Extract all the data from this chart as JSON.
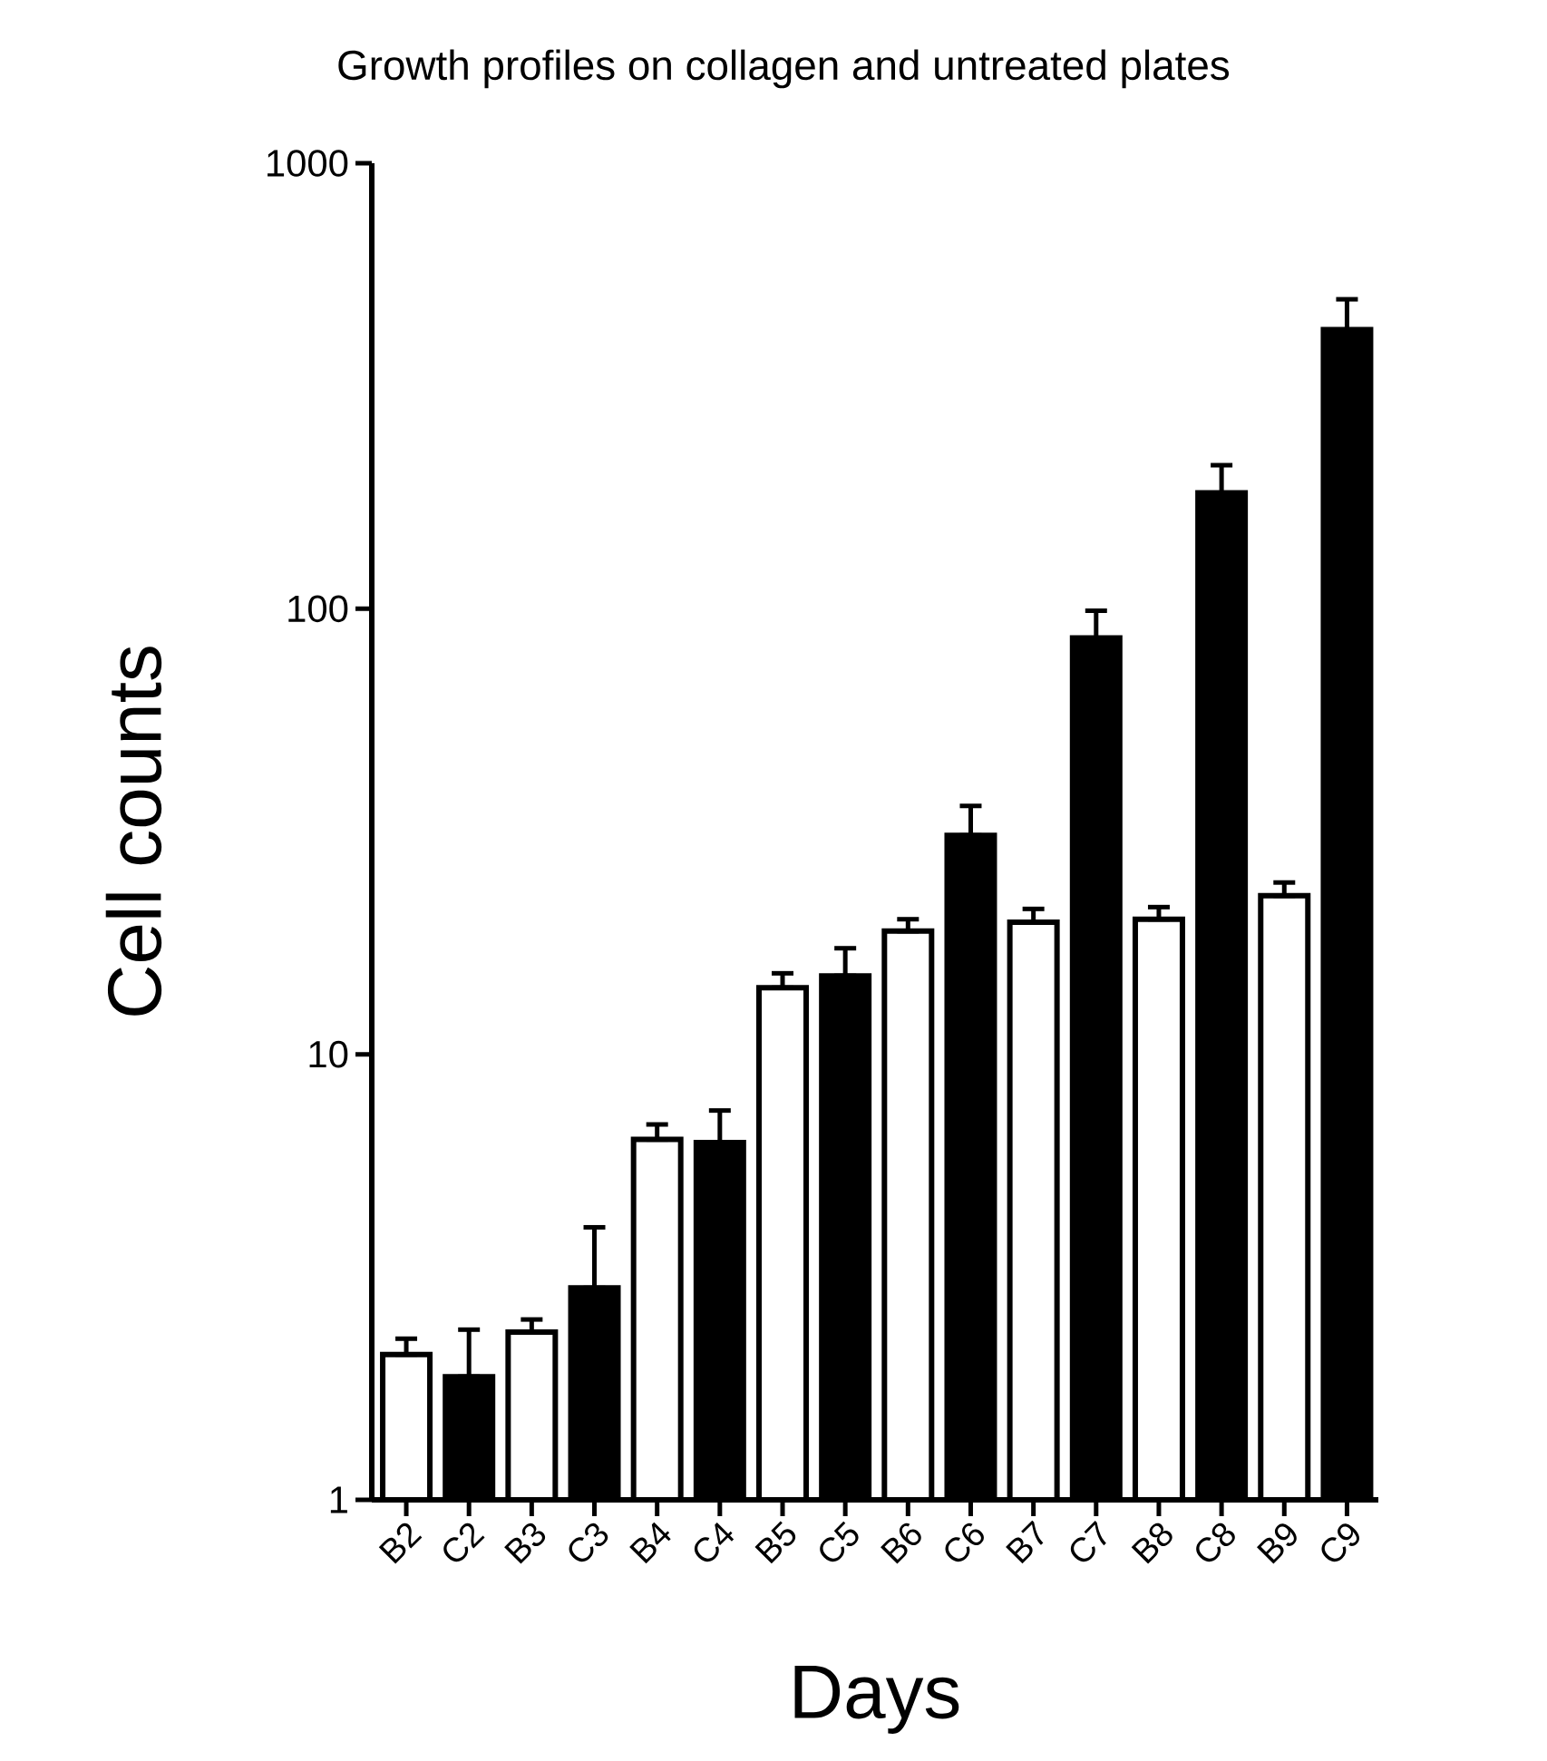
{
  "chart_data": {
    "type": "bar",
    "title": "Growth profiles on collagen and untreated plates",
    "xlabel": "Days",
    "ylabel": "Cell counts",
    "categories": [
      "B2",
      "C2",
      "B3",
      "C3",
      "B4",
      "C4",
      "B5",
      "C5",
      "B6",
      "C6",
      "B7",
      "C7",
      "B8",
      "C8",
      "B9",
      "C9"
    ],
    "values": [
      2.12,
      1.89,
      2.38,
      2.99,
      6.44,
      6.34,
      14.1,
      15.0,
      18.9,
      31.0,
      19.8,
      86,
      20.1,
      182,
      22.7,
      423
    ],
    "errors": [
      [
        2.12,
        2.3
      ],
      [
        1.89,
        2.41
      ],
      [
        2.38,
        2.54
      ],
      [
        2.99,
        4.09
      ],
      [
        6.44,
        6.96
      ],
      [
        6.34,
        7.48
      ],
      [
        14.1,
        15.2
      ],
      [
        15.0,
        17.3
      ],
      [
        18.9,
        20.1
      ],
      [
        31.0,
        36.1
      ],
      [
        19.8,
        21.2
      ],
      [
        86,
        99
      ],
      [
        20.1,
        21.4
      ],
      [
        182,
        210
      ],
      [
        22.7,
        24.3
      ],
      [
        423,
        495
      ]
    ],
    "colors": [
      "#ffffff",
      "#000000",
      "#ffffff",
      "#000000",
      "#ffffff",
      "#000000",
      "#ffffff",
      "#000000",
      "#ffffff",
      "#000000",
      "#ffffff",
      "#000000",
      "#ffffff",
      "#000000",
      "#ffffff",
      "#000000"
    ],
    "log": "y",
    "ylim": [
      1,
      1000
    ],
    "yticks": [
      1,
      10,
      100,
      1000
    ],
    "grid": false
  }
}
